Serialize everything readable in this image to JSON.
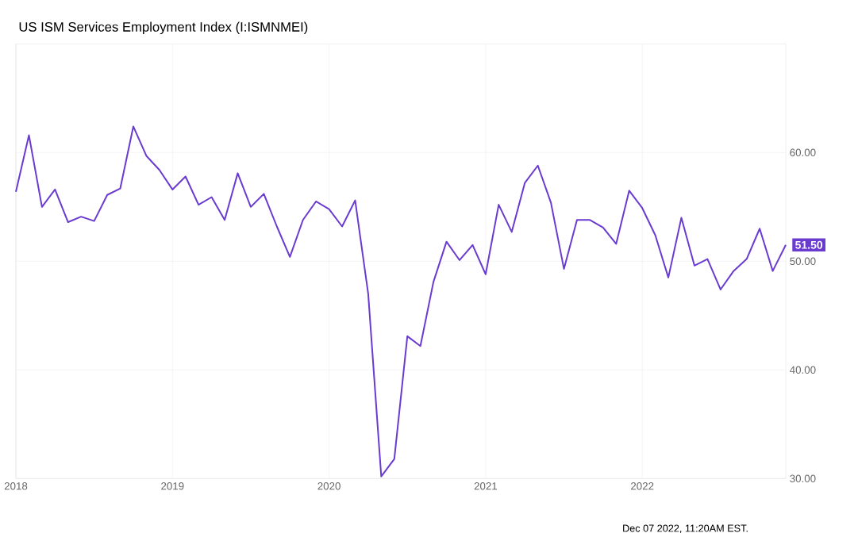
{
  "chart_data": {
    "type": "line",
    "title": "US ISM Services Employment Index (I:ISMNMEI)",
    "x": [
      "2018-01",
      "2018-02",
      "2018-03",
      "2018-04",
      "2018-05",
      "2018-06",
      "2018-07",
      "2018-08",
      "2018-09",
      "2018-10",
      "2018-11",
      "2018-12",
      "2019-01",
      "2019-02",
      "2019-03",
      "2019-04",
      "2019-05",
      "2019-06",
      "2019-07",
      "2019-08",
      "2019-09",
      "2019-10",
      "2019-11",
      "2019-12",
      "2020-01",
      "2020-02",
      "2020-03",
      "2020-04",
      "2020-05",
      "2020-06",
      "2020-07",
      "2020-08",
      "2020-09",
      "2020-10",
      "2020-11",
      "2020-12",
      "2021-01",
      "2021-02",
      "2021-03",
      "2021-04",
      "2021-05",
      "2021-06",
      "2021-07",
      "2021-08",
      "2021-09",
      "2021-10",
      "2021-11",
      "2021-12",
      "2022-01",
      "2022-02",
      "2022-03",
      "2022-04",
      "2022-05",
      "2022-06",
      "2022-07",
      "2022-08",
      "2022-09",
      "2022-10",
      "2022-11",
      "2022-12"
    ],
    "series": [
      {
        "color": "#6a3bd0",
        "values": [
          56.4,
          61.6,
          55.0,
          56.6,
          53.6,
          54.1,
          53.7,
          56.1,
          56.7,
          62.4,
          59.7,
          58.4,
          56.6,
          57.8,
          55.2,
          55.9,
          53.8,
          58.1,
          55.0,
          56.2,
          53.2,
          50.4,
          53.8,
          55.5,
          54.8,
          53.2,
          55.6,
          47.0,
          30.2,
          31.8,
          43.1,
          42.2,
          48.1,
          51.8,
          50.1,
          51.5,
          48.8,
          55.2,
          52.7,
          57.2,
          58.8,
          55.4,
          49.3,
          53.8,
          53.8,
          53.1,
          51.6,
          56.5,
          54.9,
          52.4,
          48.5,
          54.0,
          49.6,
          50.2,
          47.4,
          49.1,
          50.2,
          53.0,
          49.1,
          51.5
        ]
      }
    ],
    "xlim": [
      "2018-01",
      "2022-12"
    ],
    "xticks": [
      {
        "value": "2018-01",
        "label": "2018"
      },
      {
        "value": "2019-01",
        "label": "2019"
      },
      {
        "value": "2020-01",
        "label": "2020"
      },
      {
        "value": "2021-01",
        "label": "2021"
      },
      {
        "value": "2022-01",
        "label": "2022"
      }
    ],
    "ylim": [
      30,
      70
    ],
    "yticks": [
      {
        "value": 30,
        "label": "30.00"
      },
      {
        "value": 40,
        "label": "40.00"
      },
      {
        "value": 50,
        "label": "50.00"
      },
      {
        "value": 60,
        "label": "60.00"
      }
    ],
    "grid": true,
    "marker": "none",
    "line_style": "solid",
    "annotations": [
      {
        "text": "51.50",
        "x": "2022-12",
        "y": 51.5
      },
      "Dec 07 2022, 11:20AM EST."
    ]
  }
}
